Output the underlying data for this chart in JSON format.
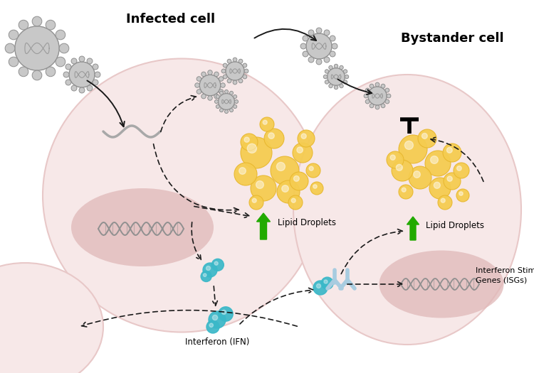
{
  "title_infected": "Infected cell",
  "title_bystander": "Bystander cell",
  "label_lipid_droplets": "Lipid Droplets",
  "label_interferon": "Interferon (IFN)",
  "label_isgs": "Interferon Stimulated\nGenes (ISGs)",
  "cell_pink": "#f7e8e8",
  "cell_border": "#e8c8c8",
  "nucleus_pink": "#e0b8b8",
  "nucleus_border": "#d0a0a0",
  "lipid_yellow": "#f5cc50",
  "lipid_yellow_dark": "#c8a020",
  "lipid_yellow_edge": "#e8b830",
  "ifn_teal": "#3ab8c8",
  "virus_gray": "#c8c8c8",
  "virus_gray_dark": "#909090",
  "virus_body": "#d8d8d8",
  "arrow_green": "#22aa00",
  "dna_gray": "#909090",
  "background": "#ffffff",
  "arrow_color": "#1a1a1a",
  "text_color": "#333333"
}
